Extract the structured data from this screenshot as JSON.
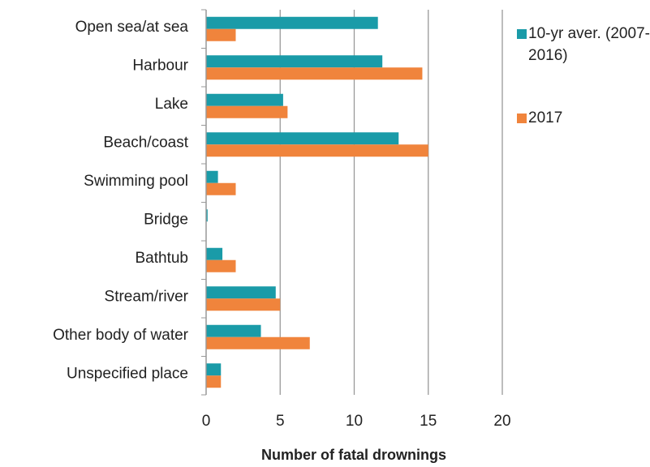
{
  "chart_data": {
    "type": "hbar",
    "x_label": "Number of fatal drownings",
    "categories": [
      "Open sea/at sea",
      "Harbour",
      "Lake",
      "Beach/coast",
      "Swimming pool",
      "Bridge",
      "Bathtub",
      "Stream/river",
      "Other body of water",
      "Unspecified place"
    ],
    "series": [
      {
        "name": "10-yr aver. (2007-2016)",
        "color": "#1a9ba8",
        "values": [
          11.6,
          11.9,
          5.2,
          13.0,
          0.8,
          0.1,
          1.1,
          4.7,
          3.7,
          1.0
        ]
      },
      {
        "name": "2017",
        "color": "#f0843c",
        "values": [
          2,
          14.6,
          5.5,
          15,
          2,
          0,
          2,
          5,
          7,
          1
        ]
      }
    ],
    "xlim": [
      0,
      20
    ],
    "xticks": [
      0,
      5,
      10,
      15,
      20
    ],
    "grid": true
  }
}
